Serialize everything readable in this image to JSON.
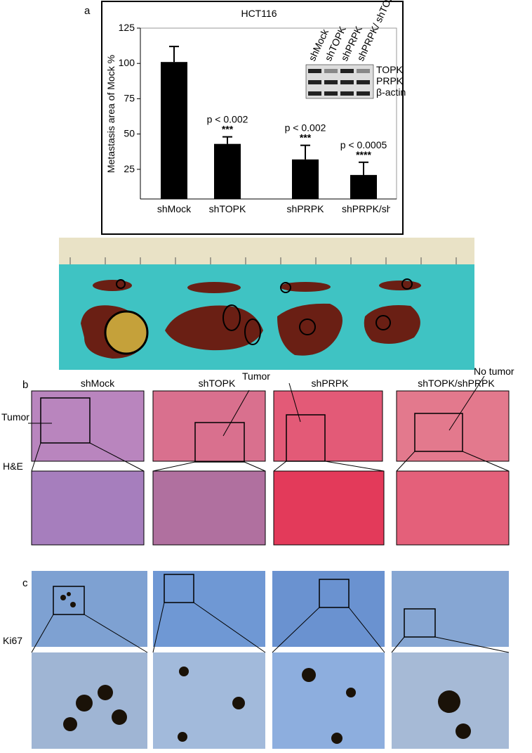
{
  "chart_data": {
    "type": "bar",
    "title": "HCT116",
    "ylabel": "Metastasis area of Mock %",
    "categories": [
      "shMock",
      "shTOPK",
      "shPRPK",
      "shPRPK/shTOPK"
    ],
    "values": [
      101,
      43,
      32,
      21
    ],
    "errors": [
      11,
      5,
      10,
      9
    ],
    "color": "#000000",
    "ylim": [
      4,
      125
    ],
    "yticks": [
      25,
      50,
      75,
      100,
      125
    ],
    "annotations": [
      null,
      {
        "p": "p < 0.002",
        "sig": "***"
      },
      {
        "p": "p < 0.002",
        "sig": "***"
      },
      {
        "p": "p < 0.0005",
        "sig": "****"
      }
    ],
    "inset": {
      "lanes": [
        "shMock",
        "shTOPK",
        "shPRPK",
        "shPRPK/ shTOPK"
      ],
      "bands": [
        "TOPK",
        "PRPK",
        "β-actin"
      ]
    }
  },
  "panels": {
    "a": "a",
    "b": "b",
    "c": "c"
  },
  "panel_b": {
    "columns": [
      "shMock",
      "shTOPK",
      "shPRPK",
      "shTOPK/shPRPK"
    ],
    "tumor_left": "Tumor",
    "tumor_top": "Tumor",
    "no_tumor": "No tumor",
    "stain": "H&E"
  },
  "panel_c": {
    "stain": "Ki67"
  }
}
